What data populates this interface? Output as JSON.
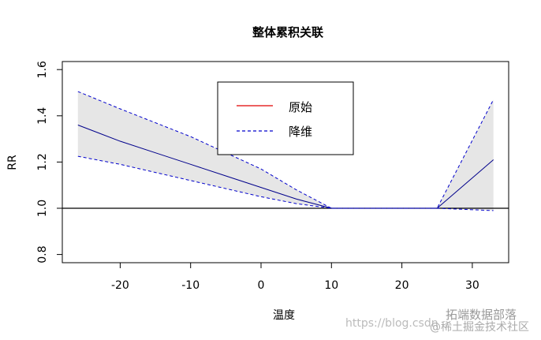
{
  "chart_data": {
    "type": "line",
    "title": "整体累积关联",
    "xlabel": "温度",
    "ylabel": "RR",
    "xlim": [
      -28.5,
      35
    ],
    "ylim": [
      0.77,
      1.64
    ],
    "xticks": [
      -20,
      -10,
      0,
      10,
      20,
      30
    ],
    "xtick_labels": [
      "-20",
      "-10",
      "0",
      "10",
      "20",
      "30"
    ],
    "yticks": [
      0.8,
      1.0,
      1.2,
      1.4,
      1.6
    ],
    "ytick_labels": [
      "0.8",
      "1.0",
      "1.2",
      "1.4",
      "1.6"
    ],
    "reference_line": 1.0,
    "legend": {
      "position": "top-center",
      "entries": [
        {
          "label": "原始",
          "color": "#e00000",
          "style": "solid"
        },
        {
          "label": "降维",
          "color": "#0000cc",
          "style": "dashed"
        }
      ]
    },
    "band_color": "#e6e6e6",
    "x": [
      -26,
      -20,
      -15,
      -10,
      -5,
      0,
      5,
      10,
      15,
      20,
      25,
      33
    ],
    "series": [
      {
        "role": "estimate",
        "color": "#00008b",
        "style": "solid",
        "values": [
          1.36,
          1.29,
          1.24,
          1.19,
          1.14,
          1.09,
          1.04,
          1.0,
          1.0,
          1.0,
          1.0,
          1.21
        ]
      },
      {
        "role": "upper",
        "color": "#0000cc",
        "style": "dashed",
        "values": [
          1.505,
          1.43,
          1.37,
          1.31,
          1.24,
          1.17,
          1.08,
          1.0,
          1.0,
          1.0,
          1.0,
          1.47
        ]
      },
      {
        "role": "lower",
        "color": "#0000cc",
        "style": "dashed",
        "values": [
          1.225,
          1.19,
          1.155,
          1.12,
          1.085,
          1.05,
          1.02,
          1.0,
          1.0,
          1.0,
          1.0,
          0.99
        ]
      }
    ]
  },
  "watermark": {
    "url": "https://blog.csdn",
    "brand": "拓端数据部落",
    "community": "@稀土掘金技术社区"
  }
}
